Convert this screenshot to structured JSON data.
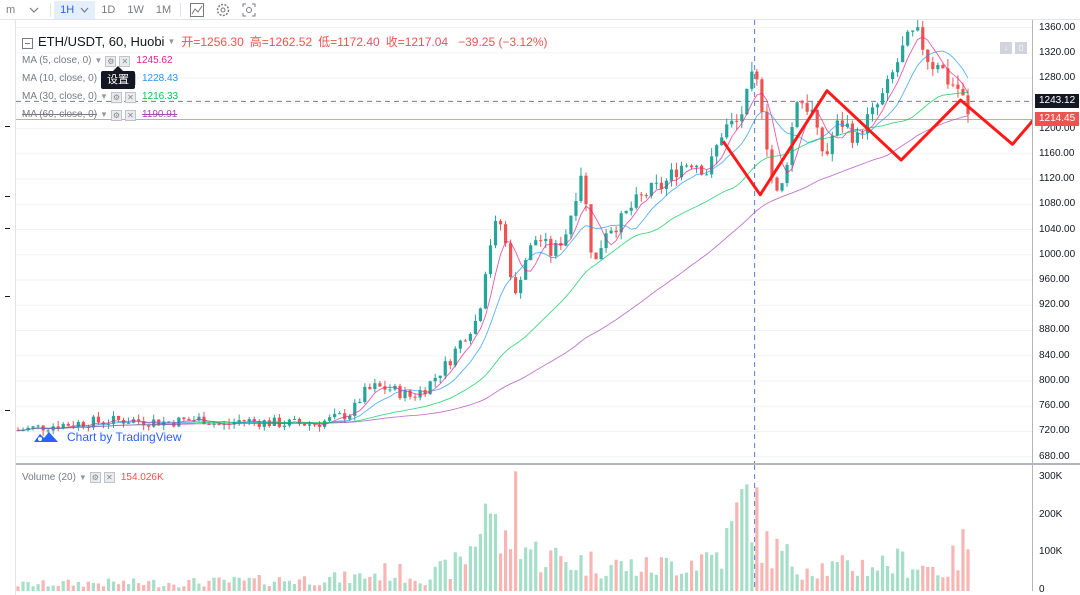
{
  "toolbar": {
    "interval_menu": "m",
    "active_interval": "1H",
    "intervals": [
      "1D",
      "1W",
      "1M"
    ]
  },
  "header": {
    "symbol": "ETH/USDT, 60, Huobi",
    "open_key": "开=",
    "open": "1256.30",
    "high_key": "高=",
    "high": "1262.52",
    "low_key": "低=",
    "low": "1172.40",
    "close_key": "收=",
    "close": "1217.04",
    "change": "−39.25 (−3.12%)"
  },
  "indicators": [
    {
      "name": "MA (5, close, 0)",
      "value": "1245.62",
      "color": "#e91e8c"
    },
    {
      "name": "MA (10, close, 0)",
      "value": "1228.43",
      "color": "#2196f3"
    },
    {
      "name": "MA (30, close, 0)",
      "value": "1216.33",
      "color": "#00c853"
    },
    {
      "name": "MA (60, close, 0)",
      "value": "1190.91",
      "color": "#ab47bc"
    }
  ],
  "tooltip_text": "设置",
  "watermark_text": "Chart by TradingView",
  "price_axis": {
    "ticks": [
      "1360.00",
      "1320.00",
      "1280.00",
      "1240.00",
      "1200.00",
      "1160.00",
      "1120.00",
      "1080.00",
      "1040.00",
      "1000.00",
      "960.00",
      "920.00",
      "880.00",
      "840.00",
      "800.00",
      "760.00",
      "720.00",
      "680.00"
    ],
    "crosshair_tag": "1243.12",
    "last_price_tag": "1214.45"
  },
  "volume": {
    "name": "Volume (20)",
    "value": "154.026K",
    "axis_ticks": [
      "300K",
      "200K",
      "100K",
      "0"
    ]
  },
  "colors": {
    "up": "#26a69a",
    "down": "#ef5350",
    "vol_up": "#a5dfc9",
    "vol_down": "#f7b6b3",
    "overlay": "#ff1a1a",
    "crosshair": "#5b7bd6"
  },
  "chart_data": {
    "type": "candlestick",
    "title": "ETH/USDT, 60, Huobi",
    "y_range": [
      670,
      1372
    ],
    "volume_range": [
      0,
      310000
    ],
    "candle_count": 190,
    "close_path": [
      [
        0,
        722
      ],
      [
        10,
        730
      ],
      [
        20,
        735
      ],
      [
        30,
        738
      ],
      [
        40,
        735
      ],
      [
        50,
        740
      ],
      [
        55,
        728
      ],
      [
        60,
        738
      ],
      [
        70,
        733
      ],
      [
        80,
        732
      ],
      [
        85,
        740
      ],
      [
        90,
        750
      ],
      [
        93,
        780
      ],
      [
        96,
        790
      ],
      [
        100,
        788
      ],
      [
        106,
        775
      ],
      [
        110,
        790
      ],
      [
        116,
        830
      ],
      [
        120,
        870
      ],
      [
        124,
        900
      ],
      [
        126,
        980
      ],
      [
        128,
        1040
      ],
      [
        130,
        1050
      ],
      [
        132,
        1000
      ],
      [
        134,
        930
      ],
      [
        136,
        985
      ],
      [
        140,
        1030
      ],
      [
        144,
        1000
      ],
      [
        148,
        1040
      ],
      [
        150,
        1090
      ],
      [
        152,
        1140
      ],
      [
        154,
        1020
      ],
      [
        156,
        985
      ],
      [
        158,
        1040
      ],
      [
        162,
        1050
      ],
      [
        166,
        1080
      ],
      [
        170,
        1100
      ],
      [
        174,
        1110
      ],
      [
        178,
        1140
      ],
      [
        182,
        1150
      ],
      [
        186,
        1130
      ],
      [
        190,
        1200
      ],
      [
        194,
        1210
      ],
      [
        196,
        1240
      ],
      [
        198,
        1280
      ],
      [
        200,
        1260
      ],
      [
        202,
        1170
      ],
      [
        204,
        1090
      ],
      [
        206,
        1110
      ],
      [
        208,
        1180
      ],
      [
        210,
        1250
      ],
      [
        212,
        1240
      ],
      [
        214,
        1225
      ],
      [
        216,
        1170
      ],
      [
        218,
        1160
      ],
      [
        220,
        1200
      ],
      [
        222,
        1210
      ],
      [
        224,
        1200
      ],
      [
        226,
        1180
      ],
      [
        228,
        1210
      ],
      [
        230,
        1220
      ],
      [
        232,
        1240
      ],
      [
        234,
        1260
      ],
      [
        236,
        1290
      ],
      [
        238,
        1320
      ],
      [
        240,
        1340
      ],
      [
        242,
        1350
      ],
      [
        244,
        1330
      ],
      [
        246,
        1300
      ],
      [
        248,
        1310
      ],
      [
        250,
        1280
      ],
      [
        252,
        1270
      ],
      [
        254,
        1260
      ],
      [
        256,
        1217
      ]
    ],
    "vol_path": [
      [
        0,
        20
      ],
      [
        20,
        25
      ],
      [
        40,
        25
      ],
      [
        60,
        30
      ],
      [
        90,
        40
      ],
      [
        100,
        60
      ],
      [
        110,
        40
      ],
      [
        120,
        90
      ],
      [
        124,
        180
      ],
      [
        126,
        300
      ],
      [
        128,
        200
      ],
      [
        130,
        160
      ],
      [
        132,
        120
      ],
      [
        134,
        300
      ],
      [
        136,
        150
      ],
      [
        140,
        110
      ],
      [
        150,
        90
      ],
      [
        160,
        80
      ],
      [
        170,
        70
      ],
      [
        180,
        90
      ],
      [
        190,
        120
      ],
      [
        196,
        280
      ],
      [
        198,
        300
      ],
      [
        200,
        150
      ],
      [
        210,
        80
      ],
      [
        220,
        70
      ],
      [
        230,
        80
      ],
      [
        240,
        90
      ],
      [
        250,
        60
      ],
      [
        256,
        154
      ]
    ],
    "overlay_polyline": [
      [
        1180,
        190
      ],
      [
        1095,
        200
      ],
      [
        1260,
        218
      ],
      [
        1150,
        238
      ],
      [
        1245,
        254
      ],
      [
        1175,
        268
      ],
      [
        1360,
        295
      ],
      [
        1275,
        315
      ],
      [
        1240,
        325
      ],
      [
        1212,
        333
      ]
    ],
    "horizontal_lines": [
      1243.12,
      1214.45
    ],
    "crosshair_price": 1243.12
  }
}
